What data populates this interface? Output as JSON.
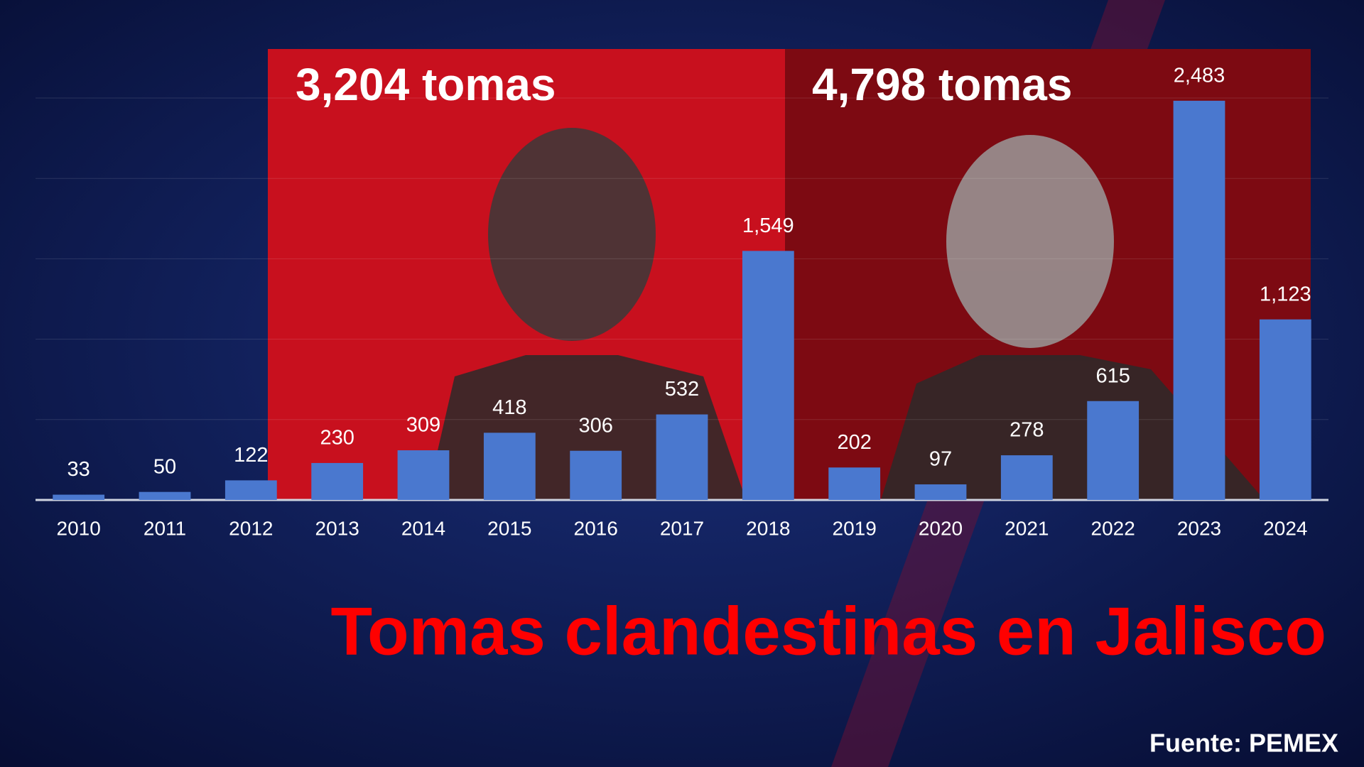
{
  "chart_data": {
    "type": "bar",
    "title": "Tomas clandestinas en Jalisco",
    "source": "Fuente: PEMEX",
    "annotations": [
      "3,204 tomas",
      "4,798 tomas"
    ],
    "categories": [
      "2010",
      "2011",
      "2012",
      "2013",
      "2014",
      "2015",
      "2016",
      "2017",
      "2018",
      "2019",
      "2020",
      "2021",
      "2022",
      "2023",
      "2024"
    ],
    "values": [
      33,
      50,
      122,
      230,
      309,
      418,
      306,
      532,
      1549,
      202,
      97,
      278,
      615,
      2483,
      1123
    ],
    "value_labels": [
      "33",
      "50",
      "122",
      "230",
      "309",
      "418",
      "306",
      "532",
      "1,549",
      "202",
      "97",
      "278",
      "615",
      "2,483",
      "1,123"
    ],
    "color": "#4a78cf",
    "ylim": [
      0,
      2500
    ],
    "yticks": [
      0,
      500,
      1000,
      1500,
      2000,
      2500
    ],
    "grid": true
  }
}
